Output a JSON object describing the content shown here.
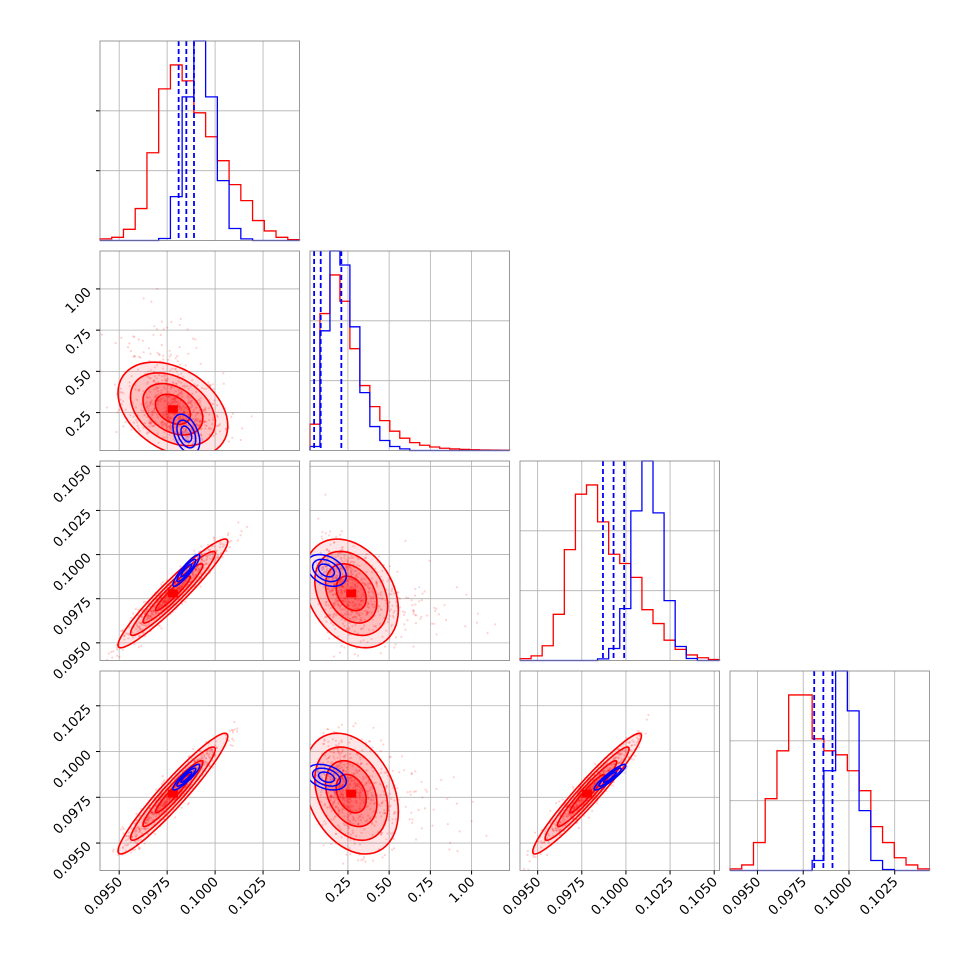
{
  "colors": {
    "primary": "#ff0000",
    "secondary": "#0000ff",
    "grid": "#b0b0b0",
    "frame": "#808080"
  },
  "chart_data": {
    "type": "corner",
    "title": "",
    "n_params": 4,
    "params": [
      {
        "label": "",
        "range": [
          0.094,
          0.1044
        ],
        "ticks": [
          0.095,
          0.0975,
          0.1,
          0.1025
        ],
        "tick_labels": [
          "0.0950",
          "0.0975",
          "0.1000",
          "0.1025"
        ]
      },
      {
        "label": "",
        "range": [
          0.02,
          1.23
        ],
        "ticks": [
          0.25,
          0.5,
          0.75,
          1.0
        ],
        "tick_labels": [
          "0.25",
          "0.50",
          "0.75",
          "1.00"
        ]
      },
      {
        "label": "",
        "range": [
          0.094,
          0.1053
        ],
        "ticks": [
          0.095,
          0.0975,
          0.1,
          0.1025,
          0.105
        ],
        "tick_labels": [
          "0.0950",
          "0.0975",
          "0.1000",
          "0.1025",
          "0.1050"
        ]
      },
      {
        "label": "",
        "range": [
          0.0935,
          0.1044
        ],
        "ticks": [
          0.095,
          0.0975,
          0.1,
          0.1025
        ],
        "tick_labels": [
          "0.0950",
          "0.0975",
          "0.1000",
          "0.1025"
        ]
      }
    ],
    "series": [
      {
        "color": "#ff0000",
        "hist1d": [
          [
            0.002,
            0.004,
            0.014,
            0.04,
            0.11,
            0.19,
            0.22,
            0.2,
            0.16,
            0.13,
            0.1,
            0.07,
            0.05,
            0.025,
            0.012,
            0.004,
            0.001
          ],
          [
            0.15,
            0.78,
            1.0,
            0.85,
            0.58,
            0.37,
            0.25,
            0.17,
            0.11,
            0.07,
            0.045,
            0.03,
            0.02,
            0.013,
            0.009,
            0.006,
            0.004,
            0.003,
            0.002,
            0.001
          ],
          [
            0.002,
            0.005,
            0.016,
            0.05,
            0.12,
            0.18,
            0.19,
            0.15,
            0.115,
            0.105,
            0.09,
            0.055,
            0.04,
            0.022,
            0.012,
            0.006,
            0.003,
            0.001
          ],
          [
            0.002,
            0.007,
            0.035,
            0.09,
            0.15,
            0.22,
            0.22,
            0.165,
            0.15,
            0.145,
            0.125,
            0.1,
            0.055,
            0.035,
            0.016,
            0.007,
            0.002
          ]
        ],
        "mean": [
          0.0978,
          0.27,
          0.0978,
          0.0977
        ],
        "sigma": [
          0.0013,
          0.13,
          0.0014,
          0.0015
        ],
        "corr": [
          [
            1,
            -0.35,
            0.95,
            0.95
          ],
          [
            -0.35,
            1,
            -0.3,
            -0.3
          ],
          [
            0.95,
            -0.3,
            1,
            0.96
          ],
          [
            0.95,
            -0.3,
            0.96,
            1
          ]
        ]
      },
      {
        "color": "#0000ff",
        "hist1d": [
          [
            0,
            0,
            0,
            0,
            0,
            0.01,
            0.22,
            0.72,
            1.0,
            0.72,
            0.3,
            0.06,
            0.008,
            0,
            0,
            0,
            0
          ],
          [
            0.02,
            0.6,
            1.0,
            0.93,
            0.62,
            0.29,
            0.12,
            0.05,
            0.02,
            0.008,
            0,
            0,
            0,
            0,
            0,
            0,
            0,
            0,
            0,
            0
          ],
          [
            0,
            0,
            0,
            0,
            0,
            0,
            0,
            0.008,
            0.06,
            0.26,
            0.75,
            1.0,
            0.74,
            0.3,
            0.07,
            0.01,
            0,
            0
          ],
          [
            0,
            0,
            0,
            0,
            0,
            0,
            0,
            0.05,
            0.5,
            1.0,
            0.8,
            0.3,
            0.05,
            0.005,
            0,
            0,
            0
          ]
        ],
        "mean": [
          0.0985,
          0.12,
          0.0991,
          0.0986
        ],
        "sigma": [
          0.00035,
          0.06,
          0.00045,
          0.00035
        ],
        "corr": [
          [
            1,
            -0.4,
            0.9,
            0.9
          ],
          [
            -0.4,
            1,
            -0.35,
            -0.35
          ],
          [
            0.9,
            -0.35,
            1,
            0.92
          ],
          [
            0.9,
            -0.35,
            0.92,
            1
          ]
        ],
        "quantiles": [
          [
            0.0981,
            0.0985,
            0.0989
          ],
          [
            0.045,
            0.085,
            0.21
          ],
          [
            0.0987,
            0.0993,
            0.0999
          ],
          [
            0.0981,
            0.0986,
            0.0991
          ]
        ]
      }
    ]
  }
}
